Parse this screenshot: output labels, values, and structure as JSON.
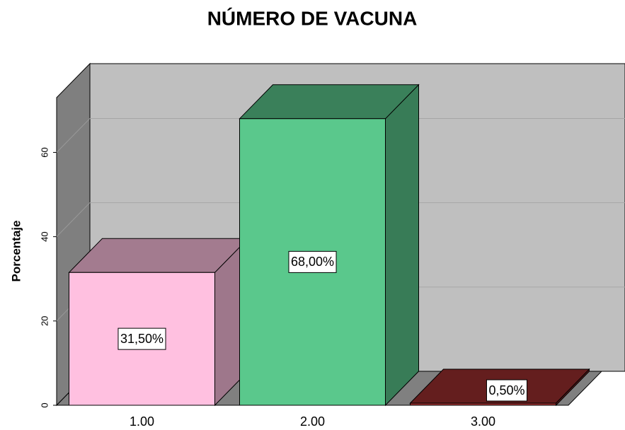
{
  "chart_data": {
    "type": "bar",
    "title": "NÚMERO DE VACUNA",
    "y_label": "Porcentaje",
    "categories": [
      "1.00",
      "2.00",
      "3.00"
    ],
    "values": [
      31.5,
      68,
      0.5
    ],
    "value_labels": [
      "31,50%",
      "68,00%",
      "0,50%"
    ],
    "colors": [
      "#ffc0e0",
      "#5ac88c",
      "#9c2f2f"
    ],
    "ylim": [
      0,
      73
    ],
    "yticks": [
      0,
      20,
      40,
      60
    ],
    "grid": true
  }
}
